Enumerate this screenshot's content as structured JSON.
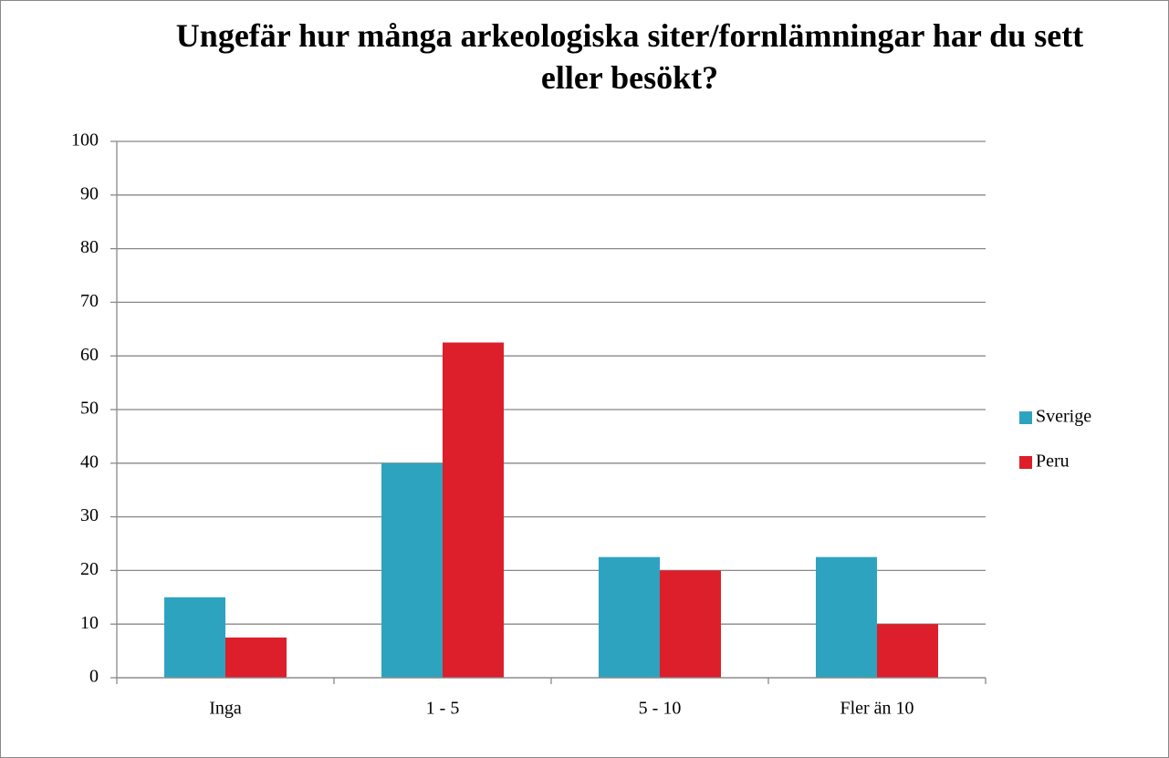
{
  "chart_data": {
    "type": "bar",
    "title": "Ungefär hur många arkeologiska siter/fornlämningar har du sett eller besökt?",
    "categories": [
      "Inga",
      "1 - 5",
      "5 - 10",
      "Fler än 10"
    ],
    "series": [
      {
        "name": "Sverige",
        "color": "#2ea3c0",
        "values": [
          15,
          40,
          22.5,
          22.5
        ]
      },
      {
        "name": "Peru",
        "color": "#dc1f2a",
        "values": [
          7.5,
          62.5,
          20,
          10
        ]
      }
    ],
    "ylim": [
      0,
      100
    ],
    "yticks": [
      0,
      10,
      20,
      30,
      40,
      50,
      60,
      70,
      80,
      90,
      100
    ],
    "grid": true,
    "legend": "right"
  }
}
